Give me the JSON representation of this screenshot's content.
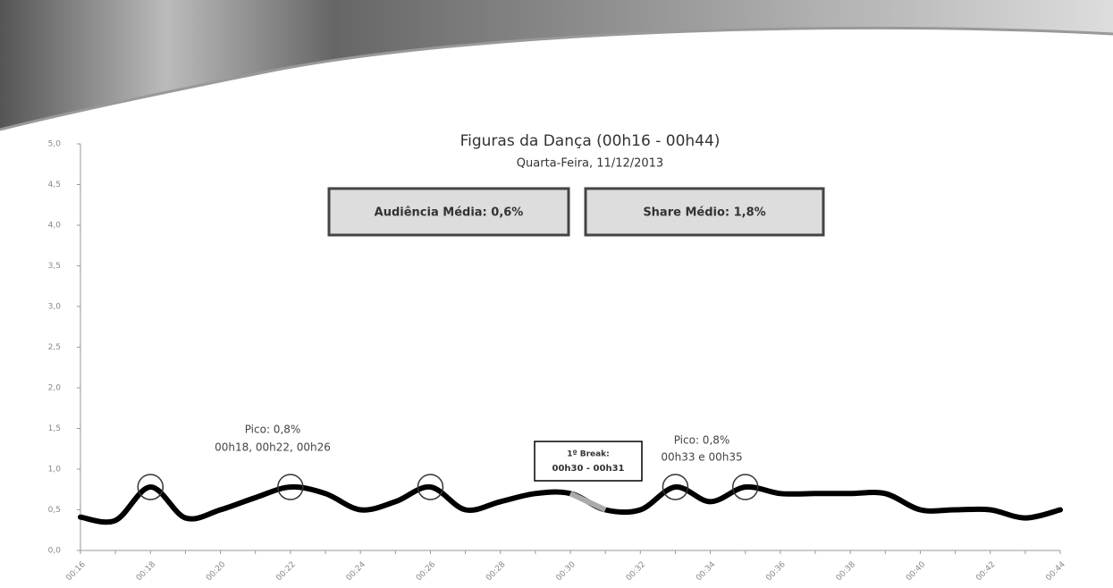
{
  "chart_data": {
    "type": "line",
    "title": "Figuras da Dança (00h16 - 00h44)",
    "subtitle": "Quarta-Feira, 11/12/2013",
    "summary": [
      "Audiência Média: 0,6%",
      "Share Médio: 1,8%"
    ],
    "annotations": [
      {
        "lines": [
          "Pico: 0,8%",
          "00h18, 00h22, 00h26"
        ]
      },
      {
        "lines": [
          "Pico: 0,8%",
          "00h33 e 00h35"
        ]
      },
      {
        "lines": [
          "1º Break:",
          "00h30 - 00h31"
        ]
      }
    ],
    "categories": [
      "00:16",
      null,
      "00:18",
      null,
      "00:20",
      null,
      "00:22",
      null,
      "00:24",
      null,
      "00:26",
      null,
      "00:28",
      null,
      "00:30",
      null,
      "00:32",
      null,
      "00:34",
      null,
      "00:36",
      null,
      "00:38",
      null,
      "00:40",
      null,
      "00:42",
      null,
      "00:44"
    ],
    "series": [
      {
        "color": "#000000",
        "values": [
          0.41,
          0.37,
          0.78,
          0.4,
          0.5,
          0.65,
          0.78,
          0.7,
          0.5,
          0.6,
          0.78,
          0.5,
          0.6,
          0.7,
          0.7,
          0.5,
          0.5,
          0.78,
          0.6,
          0.78,
          0.7,
          0.7,
          0.7,
          0.7,
          0.5,
          0.5,
          0.5,
          0.4,
          0.5
        ]
      },
      {
        "color": "#aaaaaa",
        "values": [
          null,
          null,
          null,
          null,
          null,
          null,
          null,
          null,
          null,
          null,
          null,
          null,
          null,
          null,
          0.7,
          0.5,
          null,
          null,
          null,
          null,
          null,
          null,
          null,
          null,
          null,
          null,
          null,
          null,
          null
        ]
      }
    ],
    "ylim": [
      0,
      5
    ],
    "yticks": [
      {
        "value": 0,
        "label": "0,0"
      },
      {
        "value": 0.5,
        "label": "0,5"
      },
      {
        "value": 1,
        "label": "1,0"
      },
      {
        "value": 1.5,
        "label": "1,5"
      },
      {
        "value": 2,
        "label": "2,0"
      },
      {
        "value": 2.5,
        "label": "2,5"
      },
      {
        "value": 3,
        "label": "3,0"
      },
      {
        "value": 3.5,
        "label": "3,5"
      },
      {
        "value": 4,
        "label": "4,0"
      },
      {
        "value": 4.5,
        "label": "4,5"
      },
      {
        "value": 5,
        "label": "5,0"
      }
    ],
    "grid": false
  }
}
